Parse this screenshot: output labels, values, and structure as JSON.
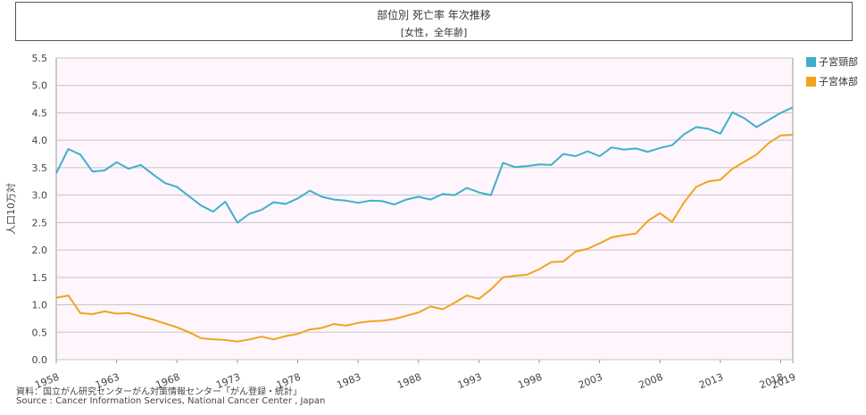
{
  "chart_data": {
    "type": "line",
    "title": "部位別 死亡率 年次推移",
    "subtitle": "[女性，全年齢]",
    "ylabel": "人口10万対",
    "ylim": [
      0,
      5.5
    ],
    "yticks": [
      "0.0",
      "0.5",
      "1.0",
      "1.5",
      "2.0",
      "2.5",
      "3.0",
      "3.5",
      "4.0",
      "4.5",
      "5.0",
      "5.5"
    ],
    "xlim": [
      1958,
      2019
    ],
    "xticks": [
      "1958",
      "1963",
      "1968",
      "1973",
      "1978",
      "1983",
      "1988",
      "1993",
      "1998",
      "2003",
      "2008",
      "2013",
      "2018",
      "2019"
    ],
    "grid": true,
    "legend_position": "right",
    "plot_background": "#fff5fd",
    "series": [
      {
        "name": "子宮頸部",
        "color": "#3fb0c9",
        "x": [
          1958,
          1959,
          1960,
          1961,
          1962,
          1963,
          1964,
          1965,
          1966,
          1967,
          1968,
          1969,
          1970,
          1971,
          1972,
          1973,
          1974,
          1975,
          1976,
          1977,
          1978,
          1979,
          1980,
          1981,
          1982,
          1983,
          1984,
          1985,
          1986,
          1987,
          1988,
          1989,
          1990,
          1991,
          1992,
          1993,
          1994,
          1995,
          1996,
          1997,
          1998,
          1999,
          2000,
          2001,
          2002,
          2003,
          2004,
          2005,
          2006,
          2007,
          2008,
          2009,
          2010,
          2011,
          2012,
          2013,
          2014,
          2015,
          2016,
          2017,
          2018,
          2019
        ],
        "values": [
          3.4,
          3.84,
          3.74,
          3.43,
          3.45,
          3.6,
          3.48,
          3.55,
          3.38,
          3.22,
          3.15,
          2.98,
          2.81,
          2.7,
          2.88,
          2.5,
          2.66,
          2.73,
          2.87,
          2.84,
          2.94,
          3.08,
          2.97,
          2.92,
          2.9,
          2.86,
          2.9,
          2.89,
          2.83,
          2.92,
          2.97,
          2.92,
          3.02,
          3.0,
          3.13,
          3.05,
          3.0,
          3.59,
          3.51,
          3.53,
          3.56,
          3.55,
          3.75,
          3.71,
          3.8,
          3.71,
          3.87,
          3.83,
          3.85,
          3.79,
          3.86,
          3.91,
          4.11,
          4.24,
          4.21,
          4.12,
          4.51,
          4.4,
          4.24,
          4.37,
          4.5,
          4.6
        ]
      },
      {
        "name": "子宮体部",
        "color": "#f0a41e",
        "x": [
          1958,
          1959,
          1960,
          1961,
          1962,
          1963,
          1964,
          1965,
          1966,
          1967,
          1968,
          1969,
          1970,
          1971,
          1972,
          1973,
          1974,
          1975,
          1976,
          1977,
          1978,
          1979,
          1980,
          1981,
          1982,
          1983,
          1984,
          1985,
          1986,
          1987,
          1988,
          1989,
          1990,
          1991,
          1992,
          1993,
          1994,
          1995,
          1996,
          1997,
          1998,
          1999,
          2000,
          2001,
          2002,
          2003,
          2004,
          2005,
          2006,
          2007,
          2008,
          2009,
          2010,
          2011,
          2012,
          2013,
          2014,
          2015,
          2016,
          2017,
          2018,
          2019
        ],
        "values": [
          1.13,
          1.17,
          0.85,
          0.83,
          0.88,
          0.84,
          0.85,
          0.79,
          0.73,
          0.66,
          0.59,
          0.5,
          0.39,
          0.37,
          0.36,
          0.33,
          0.37,
          0.42,
          0.37,
          0.43,
          0.47,
          0.55,
          0.58,
          0.65,
          0.62,
          0.67,
          0.7,
          0.71,
          0.74,
          0.8,
          0.86,
          0.97,
          0.92,
          1.04,
          1.17,
          1.11,
          1.28,
          1.5,
          1.53,
          1.55,
          1.65,
          1.78,
          1.79,
          1.97,
          2.02,
          2.12,
          2.23,
          2.27,
          2.3,
          2.53,
          2.67,
          2.51,
          2.87,
          3.15,
          3.25,
          3.28,
          3.48,
          3.61,
          3.74,
          3.95,
          4.09,
          4.1
        ]
      }
    ]
  },
  "source": {
    "line1": "資料：国立がん研究センターがん対策情報センター「がん登録・統計」",
    "line2": "Source : Cancer Information Services, National Cancer Center , Japan"
  }
}
